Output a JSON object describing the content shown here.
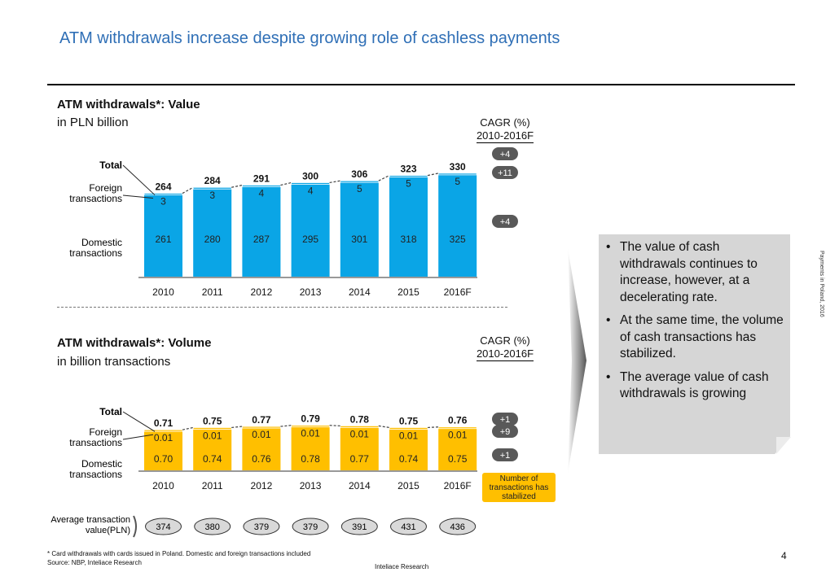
{
  "title": "ATM withdrawals increase despite growing role of cashless payments",
  "value_chart": {
    "heading": "ATM withdrawals*: Value",
    "unit": "in PLN billion",
    "cagr_header": "CAGR (%)",
    "cagr_period": "2010-2016F",
    "labels": {
      "total": "Total",
      "foreign": "Foreign transactions",
      "domestic": "Domestic transactions"
    }
  },
  "volume_chart": {
    "heading": "ATM withdrawals*: Volume",
    "unit": "in billion transactions",
    "cagr_header": "CAGR (%)",
    "cagr_period": "2010-2016F",
    "labels": {
      "total": "Total",
      "foreign": "Foreign transactions",
      "domestic": "Domestic transactions"
    },
    "callout": "Number of transactions has stabilized",
    "avg_label": "Average transaction value(PLN)",
    "avg_values": [
      "374",
      "380",
      "379",
      "379",
      "391",
      "431",
      "436"
    ]
  },
  "chart_data": [
    {
      "type": "bar",
      "stacked": true,
      "categories": [
        "2010",
        "2011",
        "2012",
        "2013",
        "2014",
        "2015",
        "2016F"
      ],
      "series": [
        {
          "name": "Domestic transactions",
          "values": [
            261,
            280,
            287,
            295,
            301,
            318,
            325
          ]
        },
        {
          "name": "Foreign transactions",
          "values": [
            3,
            3,
            4,
            4,
            5,
            5,
            5
          ]
        }
      ],
      "totals": [
        264,
        284,
        291,
        300,
        306,
        323,
        330
      ],
      "total_labels": [
        "264",
        "284",
        "291",
        "300",
        "306",
        "323",
        "330"
      ],
      "domestic_labels": [
        "261",
        "280",
        "287",
        "295",
        "301",
        "318",
        "325"
      ],
      "foreign_labels": [
        "3",
        "3",
        "4",
        "4",
        "5",
        "5",
        "5"
      ],
      "cagr": {
        "total": "+4",
        "foreign": "+11",
        "domestic": "+4"
      },
      "color": "#0aa5e6",
      "ylim": [
        0,
        330
      ]
    },
    {
      "type": "bar",
      "stacked": true,
      "categories": [
        "2010",
        "2011",
        "2012",
        "2013",
        "2014",
        "2015",
        "2016F"
      ],
      "series": [
        {
          "name": "Domestic transactions",
          "values": [
            0.7,
            0.74,
            0.76,
            0.78,
            0.77,
            0.74,
            0.75
          ]
        },
        {
          "name": "Foreign transactions",
          "values": [
            0.01,
            0.01,
            0.01,
            0.01,
            0.01,
            0.01,
            0.01
          ]
        }
      ],
      "totals": [
        0.71,
        0.75,
        0.77,
        0.79,
        0.78,
        0.75,
        0.76
      ],
      "total_labels": [
        "0.71",
        "0.75",
        "0.77",
        "0.79",
        "0.78",
        "0.75",
        "0.76"
      ],
      "domestic_labels": [
        "0.70",
        "0.74",
        "0.76",
        "0.78",
        "0.77",
        "0.74",
        "0.75"
      ],
      "foreign_labels": [
        "0.01",
        "0.01",
        "0.01",
        "0.01",
        "0.01",
        "0.01",
        "0.01"
      ],
      "cagr": {
        "total": "+1",
        "foreign": "+9",
        "domestic": "+1"
      },
      "color": "#ffbf00",
      "ylim": [
        0,
        0.79
      ]
    }
  ],
  "bullets": [
    "The value of cash withdrawals continues to increase, however, at a decelerating rate.",
    "At the same time, the volume of cash transactions has stabilized.",
    "The average value of cash withdrawals is growing"
  ],
  "side_note": "Payments in Poland, 2016",
  "footnote": "* Card withdrawals with cards issued in Poland. Domestic and foreign transactions included",
  "source": "Source:  NBP, Inteliace  Research",
  "page_number": "4",
  "brand": "Inteliace Research"
}
